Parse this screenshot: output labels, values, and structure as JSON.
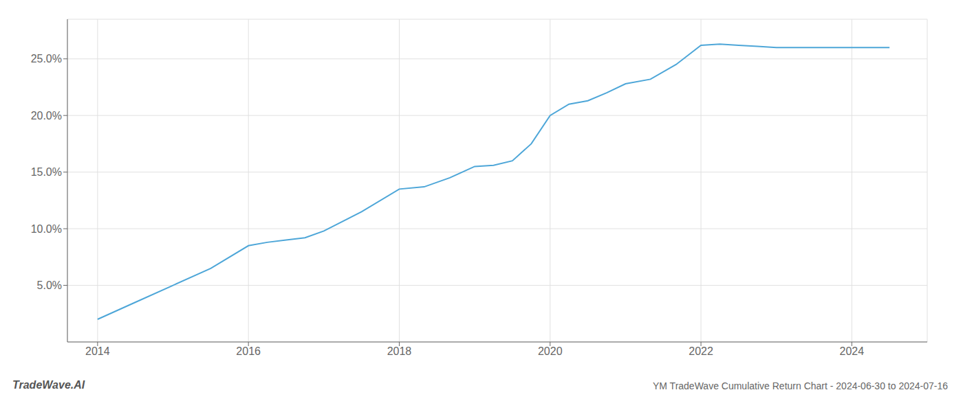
{
  "chart_data": {
    "type": "line",
    "title": "YM TradeWave Cumulative Return Chart - 2024-06-30 to 2024-07-16",
    "annotations": [
      "TradeWave.AI"
    ],
    "color": "#4da6d8",
    "grid": true,
    "x": [
      2014.0,
      2014.5,
      2015.0,
      2015.5,
      2016.0,
      2016.25,
      2016.5,
      2016.75,
      2017.0,
      2017.5,
      2018.0,
      2018.33,
      2018.67,
      2019.0,
      2019.25,
      2019.5,
      2019.75,
      2020.0,
      2020.25,
      2020.5,
      2020.75,
      2021.0,
      2021.33,
      2021.67,
      2022.0,
      2022.25,
      2022.5,
      2022.75,
      2023.0,
      2023.5,
      2024.0,
      2024.5
    ],
    "values": [
      2.0,
      3.5,
      5.0,
      6.5,
      8.5,
      8.8,
      9.0,
      9.2,
      9.8,
      11.5,
      13.5,
      13.7,
      14.5,
      15.5,
      15.6,
      16.0,
      17.5,
      20.0,
      21.0,
      21.3,
      22.0,
      22.8,
      23.2,
      24.5,
      26.2,
      26.3,
      26.2,
      26.1,
      26.0,
      26.0,
      26.0,
      26.0
    ],
    "xlim": [
      2013.6,
      2025.0
    ],
    "ylim": [
      0.0,
      28.5
    ],
    "xticks": [
      2014,
      2016,
      2018,
      2020,
      2022,
      2024
    ],
    "yticks": [
      {
        "value": 5.0,
        "label": "5.0%"
      },
      {
        "value": 10.0,
        "label": "10.0%"
      },
      {
        "value": 15.0,
        "label": "15.0%"
      },
      {
        "value": 20.0,
        "label": "20.0%"
      },
      {
        "value": 25.0,
        "label": "25.0%"
      }
    ]
  }
}
